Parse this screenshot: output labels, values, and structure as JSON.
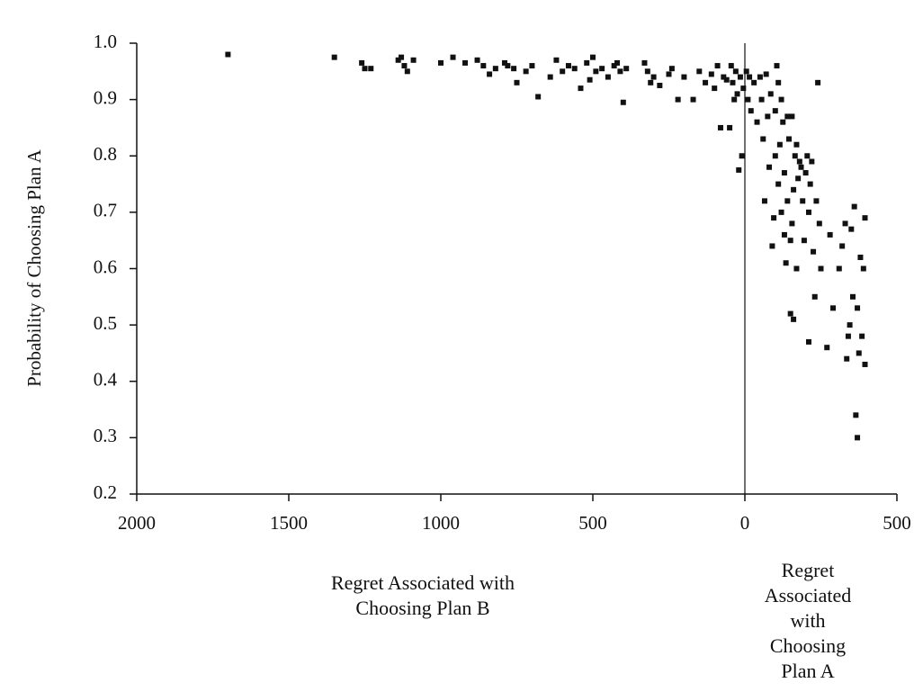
{
  "chart_data": {
    "type": "scatter",
    "y_label": "Probability of Choosing Plan A",
    "x_label_left": "Regret Associated with Choosing Plan B",
    "x_label_right": "Regret Associated with Choosing Plan A",
    "color": "#111111",
    "xlim": [
      -2000,
      500
    ],
    "xticks": [
      {
        "value": -2000,
        "label": "2000"
      },
      {
        "value": -1500,
        "label": "1500"
      },
      {
        "value": -1000,
        "label": "1000"
      },
      {
        "value": -500,
        "label": "500"
      },
      0,
      500
    ],
    "ylim": [
      0.2,
      1.0
    ],
    "yticks": [
      0.2,
      0.3,
      0.4,
      0.5,
      0.6,
      0.7,
      0.8,
      0.9,
      {
        "value": 1.0,
        "label": "1.0"
      }
    ],
    "x": [
      -1700,
      -1350,
      -1260,
      -1250,
      -1230,
      -1140,
      -1130,
      -1120,
      -1110,
      -1090,
      -1000,
      -960,
      -920,
      -880,
      -860,
      -840,
      -820,
      -790,
      -780,
      -760,
      -750,
      -720,
      -700,
      -680,
      -640,
      -620,
      -600,
      -580,
      -560,
      -540,
      -520,
      -510,
      -500,
      -490,
      -470,
      -450,
      -430,
      -420,
      -410,
      -400,
      -390,
      -330,
      -320,
      -310,
      -300,
      -280,
      -250,
      -240,
      -220,
      -200,
      -170,
      -150,
      -130,
      -110,
      -100,
      -90,
      -80,
      -70,
      -60,
      -50,
      -45,
      -40,
      -35,
      -30,
      -25,
      -20,
      -15,
      -10,
      -5,
      5,
      10,
      15,
      20,
      30,
      40,
      50,
      55,
      60,
      65,
      70,
      75,
      80,
      85,
      90,
      95,
      100,
      100,
      105,
      110,
      110,
      115,
      120,
      120,
      125,
      130,
      130,
      135,
      140,
      140,
      145,
      150,
      150,
      155,
      155,
      160,
      160,
      165,
      170,
      170,
      175,
      180,
      185,
      190,
      195,
      200,
      205,
      210,
      210,
      215,
      220,
      225,
      230,
      235,
      240,
      245,
      250,
      270,
      280,
      290,
      310,
      320,
      330,
      335,
      340,
      345,
      350,
      355,
      360,
      365,
      370,
      370,
      375,
      380,
      385,
      390,
      395,
      395
    ],
    "values": [
      0.98,
      0.975,
      0.965,
      0.955,
      0.955,
      0.97,
      0.975,
      0.96,
      0.95,
      0.97,
      0.965,
      0.975,
      0.965,
      0.97,
      0.96,
      0.945,
      0.955,
      0.965,
      0.96,
      0.955,
      0.93,
      0.95,
      0.96,
      0.905,
      0.94,
      0.97,
      0.95,
      0.96,
      0.955,
      0.92,
      0.965,
      0.935,
      0.975,
      0.95,
      0.955,
      0.94,
      0.96,
      0.965,
      0.95,
      0.895,
      0.955,
      0.965,
      0.95,
      0.93,
      0.94,
      0.925,
      0.945,
      0.955,
      0.9,
      0.94,
      0.9,
      0.95,
      0.93,
      0.945,
      0.92,
      0.96,
      0.85,
      0.94,
      0.935,
      0.85,
      0.96,
      0.93,
      0.9,
      0.95,
      0.91,
      0.775,
      0.94,
      0.8,
      0.92,
      0.95,
      0.9,
      0.94,
      0.88,
      0.93,
      0.86,
      0.94,
      0.9,
      0.83,
      0.72,
      0.945,
      0.87,
      0.78,
      0.91,
      0.64,
      0.69,
      0.8,
      0.88,
      0.96,
      0.75,
      0.93,
      0.82,
      0.9,
      0.7,
      0.86,
      0.66,
      0.77,
      0.61,
      0.87,
      0.72,
      0.83,
      0.52,
      0.65,
      0.68,
      0.87,
      0.51,
      0.74,
      0.8,
      0.6,
      0.82,
      0.76,
      0.79,
      0.78,
      0.72,
      0.65,
      0.77,
      0.8,
      0.47,
      0.7,
      0.75,
      0.79,
      0.63,
      0.55,
      0.72,
      0.93,
      0.68,
      0.6,
      0.46,
      0.66,
      0.53,
      0.6,
      0.64,
      0.68,
      0.44,
      0.48,
      0.5,
      0.67,
      0.55,
      0.71,
      0.34,
      0.3,
      0.53,
      0.45,
      0.62,
      0.48,
      0.6,
      0.69,
      0.43
    ]
  }
}
